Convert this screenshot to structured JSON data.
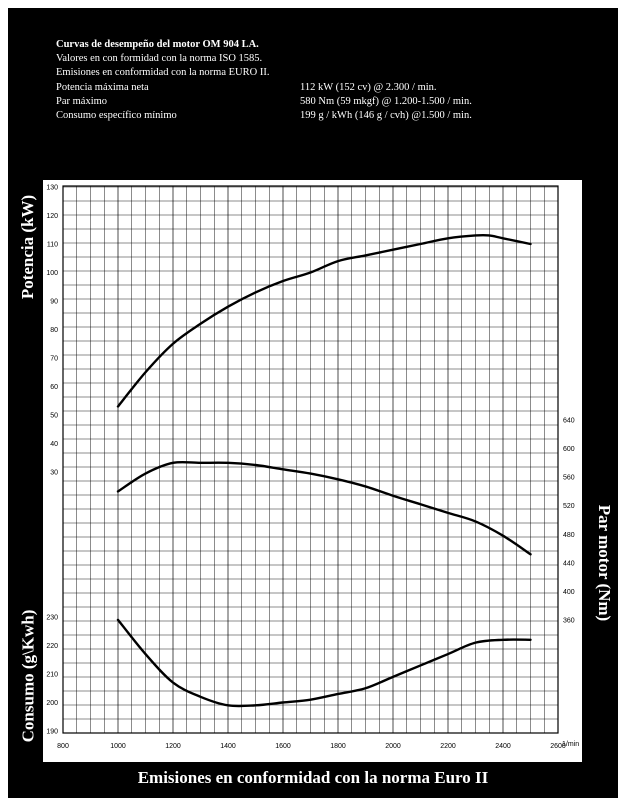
{
  "header": {
    "title": "Curvas de desempeño del motor OM 904 LA.",
    "line1": "Valores en con formidad con la norma ISO 1585.",
    "line2": "Emisiones en conformidad con la norma EURO II.",
    "specs": [
      {
        "label": "Potencia máxima neta",
        "value": "112 kW (152 cv) @ 2.300 / min."
      },
      {
        "label": "Par máximo",
        "value": "580 Nm (59 mkgf) @ 1.200-1.500 / min."
      },
      {
        "label": "Consumo específico mínimo",
        "value": "199 g / kWh (146 g / cvh) @1.500 / min."
      }
    ]
  },
  "labels": {
    "potencia": "Potencia (kW)",
    "par": "Par motor (Nm)",
    "consumo": "Consumo (g\\Kwh)",
    "footer": "Emisiones en conformidad con la norma Euro II",
    "rpm_unit": "1/min"
  },
  "chart_data": {
    "type": "line",
    "x_ticks": [
      "800",
      "1000",
      "1200",
      "1400",
      "1600",
      "1800",
      "2000",
      "2200",
      "2400",
      "2600"
    ],
    "xlim": [
      800,
      2600
    ],
    "grid": true,
    "power_axis": {
      "ticks": [
        "130",
        "120",
        "110",
        "100",
        "90",
        "80",
        "70",
        "60",
        "50",
        "40",
        "30"
      ],
      "ylim": [
        30,
        130
      ]
    },
    "torque_axis": {
      "ticks": [
        "640",
        "600",
        "560",
        "520",
        "480",
        "440",
        "400",
        "360"
      ],
      "ylim": [
        360,
        640
      ]
    },
    "consumption_axis": {
      "ticks": [
        "230",
        "220",
        "210",
        "200",
        "190"
      ],
      "ylim": [
        190,
        230
      ]
    },
    "series": [
      {
        "key": "power",
        "axis": "power_axis",
        "x": [
          1000,
          1100,
          1200,
          1300,
          1400,
          1500,
          1600,
          1700,
          1800,
          1900,
          2000,
          2100,
          2200,
          2300,
          2350,
          2400,
          2500
        ],
        "y": [
          53,
          65,
          75,
          82,
          88,
          93,
          97,
          100,
          104,
          106,
          108,
          110,
          112,
          113,
          113,
          112,
          110
        ]
      },
      {
        "key": "torque",
        "axis": "torque_axis",
        "x": [
          1000,
          1100,
          1200,
          1300,
          1400,
          1500,
          1600,
          1700,
          1800,
          1900,
          2000,
          2100,
          2200,
          2300,
          2400,
          2500
        ],
        "y": [
          540,
          565,
          580,
          580,
          580,
          577,
          571,
          565,
          557,
          547,
          534,
          522,
          510,
          498,
          478,
          452
        ]
      },
      {
        "key": "consumption",
        "axis": "consumption_axis",
        "x": [
          1000,
          1100,
          1200,
          1300,
          1400,
          1500,
          1600,
          1700,
          1800,
          1900,
          2000,
          2100,
          2200,
          2300,
          2400,
          2500
        ],
        "y": [
          229,
          217,
          207,
          202,
          199,
          199,
          200,
          201,
          203,
          205,
          209,
          213,
          217,
          221,
          222,
          222
        ]
      }
    ]
  }
}
